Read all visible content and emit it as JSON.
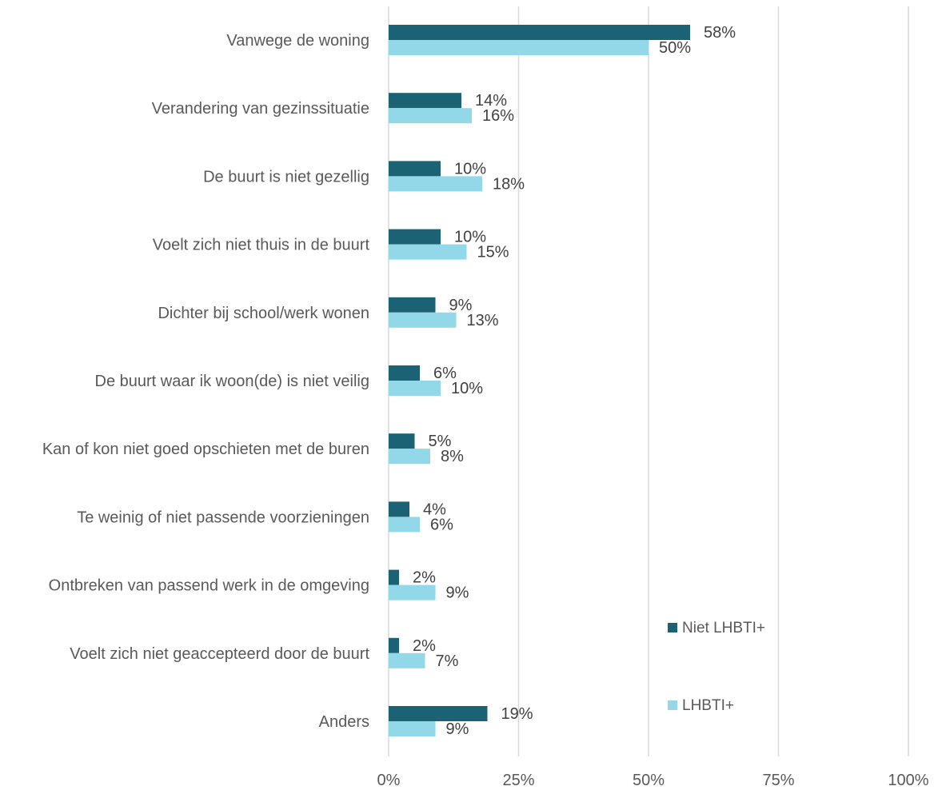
{
  "chart_data": {
    "type": "bar",
    "orientation": "horizontal",
    "categories": [
      "Vanwege de woning",
      "Verandering van gezinssituatie",
      "De buurt is niet gezellig",
      "Voelt zich niet thuis in de buurt",
      "Dichter bij school/werk wonen",
      "De buurt waar ik woon(de) is niet veilig",
      "Kan of kon niet goed opschieten met de buren",
      "Te weinig of niet passende voorzieningen",
      "Ontbreken van passend werk in de omgeving",
      "Voelt zich niet geaccepteerd door de buurt",
      "Anders"
    ],
    "series": [
      {
        "name": "Niet LHBTI+",
        "color": "#1a6274",
        "values": [
          58,
          14,
          10,
          10,
          9,
          6,
          5,
          4,
          2,
          2,
          19
        ],
        "labels": [
          "58%",
          "14%",
          "10%",
          "10%",
          "9%",
          "6%",
          "5%",
          "4%",
          "2%",
          "2%",
          "19%"
        ]
      },
      {
        "name": "LHBTI+",
        "color": "#92d8e8",
        "values": [
          50,
          16,
          18,
          15,
          13,
          10,
          8,
          6,
          9,
          7,
          9
        ],
        "labels": [
          "50%",
          "16%",
          "18%",
          "15%",
          "13%",
          "10%",
          "8%",
          "6%",
          "9%",
          "7%",
          "9%"
        ]
      }
    ],
    "xlim": [
      0,
      100
    ],
    "ticks": [
      0,
      25,
      50,
      75,
      100
    ],
    "tick_labels": [
      "0%",
      "25%",
      "50%",
      "75%",
      "100%"
    ],
    "grid": true,
    "legend_position": "right",
    "title": "",
    "xlabel": "",
    "ylabel": ""
  }
}
